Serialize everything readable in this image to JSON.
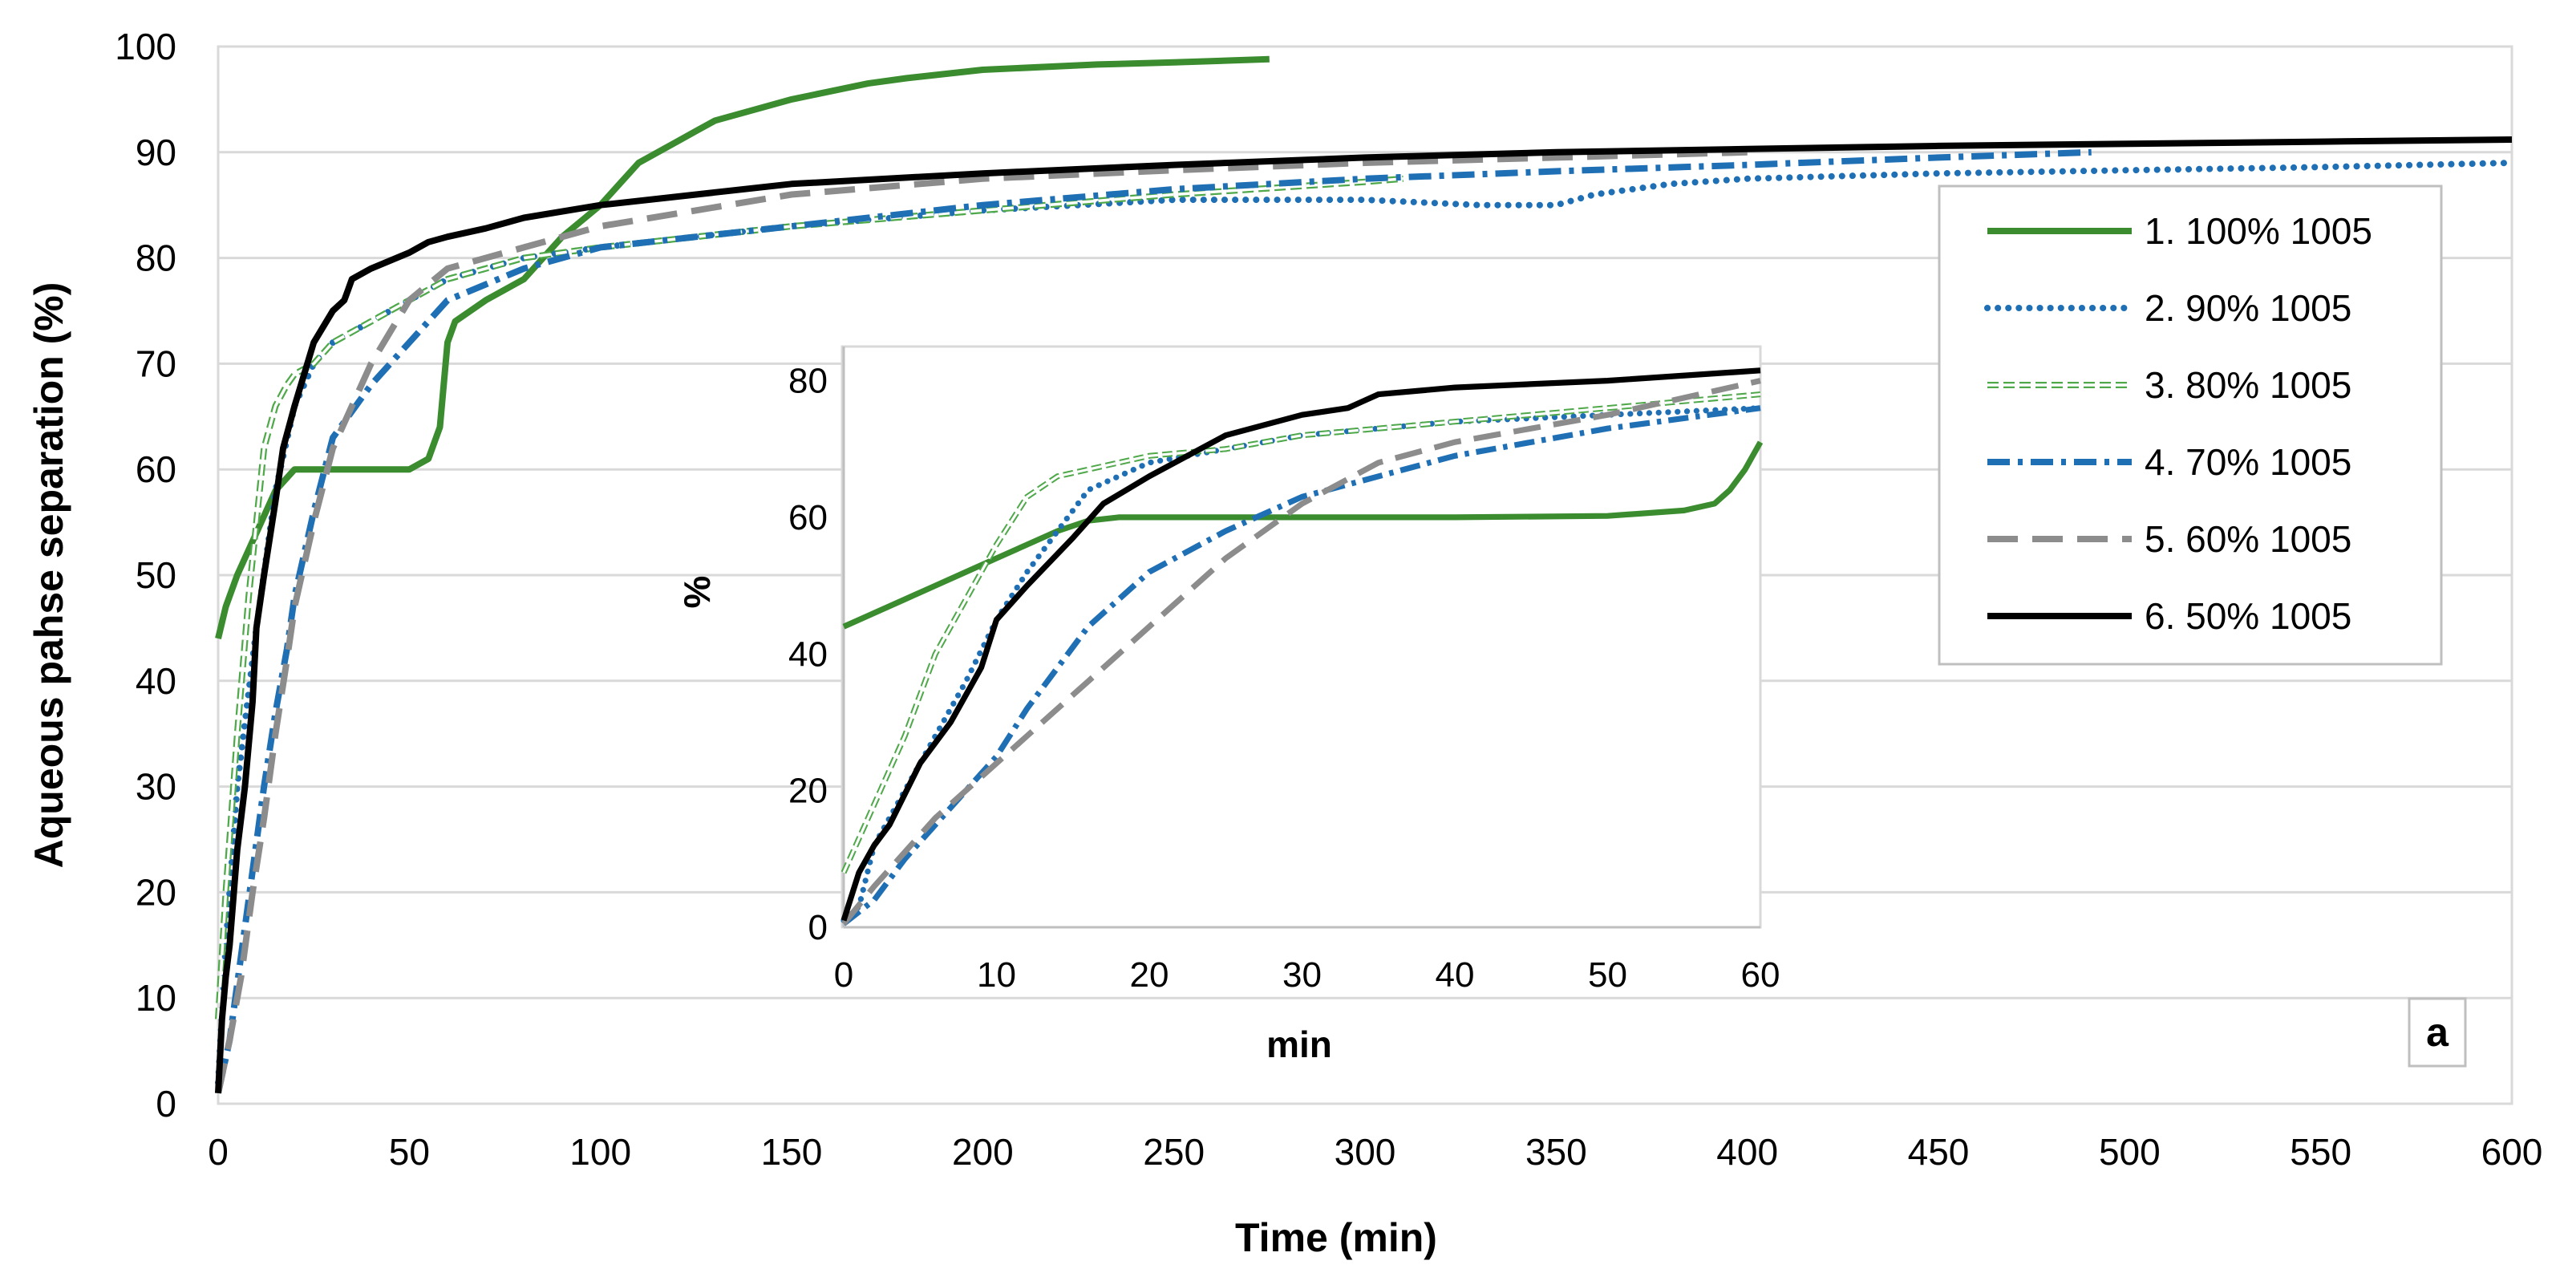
{
  "chart_data": [
    {
      "type": "line",
      "xlabel": "Time (min)",
      "ylabel": "Aqueous pahse separation (%)",
      "xlim": [
        0,
        600
      ],
      "ylim": [
        0,
        100
      ],
      "x_ticks": [
        0,
        50,
        100,
        150,
        200,
        250,
        300,
        350,
        400,
        450,
        500,
        550,
        600
      ],
      "y_ticks": [
        0,
        10,
        20,
        30,
        40,
        50,
        60,
        70,
        80,
        90,
        100
      ],
      "grid": "horizontal",
      "legend_position": "right",
      "panel_label": "a",
      "series": [
        {
          "name": "1. 100% 1005",
          "color": "#3a8c2f",
          "style": "solid",
          "x": [
            0,
            2,
            5,
            10,
            15,
            20,
            30,
            40,
            50,
            55,
            58,
            60,
            62,
            70,
            80,
            90,
            100,
            105,
            110,
            120,
            125,
            130,
            150,
            170,
            180,
            200,
            230,
            250,
            275
          ],
          "y": [
            44,
            47,
            50,
            54,
            58,
            60,
            60,
            60,
            60,
            61,
            64,
            72,
            74,
            76,
            78,
            82,
            85,
            87,
            89,
            91,
            92,
            93,
            95,
            96.5,
            97,
            97.8,
            98.3,
            98.5,
            98.8
          ]
        },
        {
          "name": "2. 90% 1005",
          "color": "#1f6fb5",
          "style": "dotted",
          "x": [
            0,
            2,
            5,
            10,
            15,
            20,
            25,
            30,
            40,
            50,
            60,
            80,
            100,
            150,
            200,
            250,
            300,
            330,
            350,
            360,
            380,
            400,
            450,
            500,
            550,
            600
          ],
          "y": [
            2,
            15,
            30,
            45,
            58,
            66,
            70,
            72,
            74,
            76,
            78,
            80,
            81,
            83,
            84.5,
            85.5,
            85.5,
            85,
            85,
            86,
            87,
            87.5,
            88,
            88.3,
            88.6,
            89
          ]
        },
        {
          "name": "3. 80% 1005",
          "color": "#4fa84a",
          "style": "double",
          "x": [
            0,
            2,
            5,
            8,
            10,
            12,
            15,
            18,
            20,
            25,
            30,
            40,
            50,
            60,
            80,
            100,
            150,
            200,
            250,
            300,
            310
          ],
          "y": [
            8,
            20,
            35,
            48,
            55,
            62,
            66,
            68,
            69,
            70,
            72,
            74,
            76,
            78,
            80,
            81,
            83,
            84.5,
            86,
            87.2,
            87.5
          ]
        },
        {
          "name": "4. 70% 1005",
          "color": "#1f6fb5",
          "style": "dashdot",
          "x": [
            0,
            3,
            6,
            9,
            12,
            15,
            18,
            20,
            25,
            30,
            40,
            50,
            60,
            80,
            100,
            150,
            200,
            250,
            300,
            350,
            400,
            450,
            490
          ],
          "y": [
            1,
            6,
            14,
            22,
            30,
            37,
            43,
            48,
            56,
            63,
            68,
            72,
            76,
            79,
            81,
            83,
            85,
            86.5,
            87.5,
            88.2,
            88.8,
            89.5,
            90
          ]
        },
        {
          "name": "5. 60% 1005",
          "color": "#8c8c8c",
          "style": "dashed",
          "x": [
            0,
            3,
            6,
            9,
            12,
            15,
            18,
            20,
            25,
            30,
            40,
            50,
            60,
            80,
            100,
            150,
            200,
            250,
            300,
            350,
            400
          ],
          "y": [
            1,
            6,
            12,
            20,
            27,
            35,
            42,
            47,
            55,
            62,
            70,
            76,
            79,
            81,
            83,
            86,
            87.5,
            88.3,
            89,
            89.5,
            90
          ]
        },
        {
          "name": "6. 50% 1005",
          "color": "#000000",
          "style": "solid",
          "x": [
            0,
            1,
            2,
            3,
            5,
            7,
            9,
            10,
            12,
            15,
            17,
            20,
            25,
            30,
            33,
            34,
            35,
            40,
            50,
            55,
            60,
            70,
            80,
            100,
            150,
            200,
            250,
            300,
            350,
            400,
            450,
            500,
            550,
            600
          ],
          "y": [
            1,
            8,
            12,
            15,
            24,
            30,
            38,
            45,
            50,
            57,
            62,
            66,
            72,
            75,
            76,
            77,
            78,
            79,
            80.5,
            81.5,
            82,
            82.8,
            83.8,
            85,
            87,
            88,
            88.8,
            89.5,
            90,
            90.3,
            90.6,
            90.8,
            91,
            91.2
          ]
        }
      ]
    },
    {
      "type": "line",
      "role": "inset",
      "xlabel": "min",
      "ylabel": "%",
      "xlim": [
        0,
        60
      ],
      "ylim": [
        0,
        85
      ],
      "x_ticks": [
        0,
        10,
        20,
        30,
        40,
        50,
        60
      ],
      "y_ticks": [
        0,
        20,
        40,
        60,
        80
      ],
      "grid": "none",
      "series": [
        {
          "name": "1. 100% 1005",
          "color": "#3a8c2f",
          "style": "solid",
          "x": [
            0,
            2,
            4,
            6,
            8,
            10,
            12,
            14,
            16,
            18,
            20,
            30,
            40,
            50,
            55,
            57,
            58,
            59,
            60
          ],
          "y": [
            44,
            46,
            48,
            50,
            52,
            54,
            56,
            58,
            59.5,
            60,
            60,
            60,
            60,
            60.2,
            61,
            62,
            64,
            67,
            71
          ]
        },
        {
          "name": "2. 90% 1005",
          "color": "#1f6fb5",
          "style": "dotted",
          "x": [
            0,
            1,
            2,
            4,
            6,
            8,
            10,
            12,
            14,
            16,
            18,
            20,
            25,
            30,
            40,
            50,
            60
          ],
          "y": [
            1,
            3,
            12,
            20,
            28,
            36,
            45,
            52,
            58,
            64,
            66,
            68,
            70,
            72,
            74,
            75,
            76
          ]
        },
        {
          "name": "3. 80% 1005",
          "color": "#4fa84a",
          "style": "double",
          "x": [
            0,
            2,
            4,
            6,
            8,
            10,
            12,
            14,
            16,
            18,
            20,
            25,
            30,
            40,
            50,
            60
          ],
          "y": [
            8,
            18,
            28,
            40,
            48,
            56,
            63,
            66,
            67,
            68,
            69,
            70,
            72,
            74,
            76,
            78
          ]
        },
        {
          "name": "4. 70% 1005",
          "color": "#1f6fb5",
          "style": "dashdot",
          "x": [
            0,
            2,
            4,
            6,
            8,
            10,
            12,
            14,
            16,
            18,
            20,
            25,
            30,
            40,
            50,
            60
          ],
          "y": [
            0.5,
            4,
            10,
            15,
            20,
            25,
            32,
            38,
            44,
            48,
            52,
            58,
            63,
            69,
            73,
            76
          ]
        },
        {
          "name": "5. 60% 1005",
          "color": "#8c8c8c",
          "style": "dashed",
          "x": [
            0,
            2,
            4,
            6,
            8,
            10,
            12,
            14,
            16,
            18,
            20,
            25,
            30,
            35,
            40,
            50,
            60
          ],
          "y": [
            0.5,
            6,
            11,
            16,
            20,
            24,
            28,
            32,
            36,
            40,
            44,
            54,
            62,
            68,
            71,
            75,
            80
          ]
        },
        {
          "name": "6. 50% 1005",
          "color": "#000000",
          "style": "solid",
          "x": [
            0,
            1,
            2,
            3,
            5,
            7,
            9,
            10,
            12,
            15,
            17,
            20,
            25,
            30,
            33,
            34,
            35,
            40,
            50,
            60
          ],
          "y": [
            1,
            8,
            12,
            15,
            24,
            30,
            38,
            45,
            50,
            57,
            62,
            66,
            72,
            75,
            76,
            77,
            78,
            79,
            80,
            81.5
          ]
        }
      ]
    }
  ]
}
